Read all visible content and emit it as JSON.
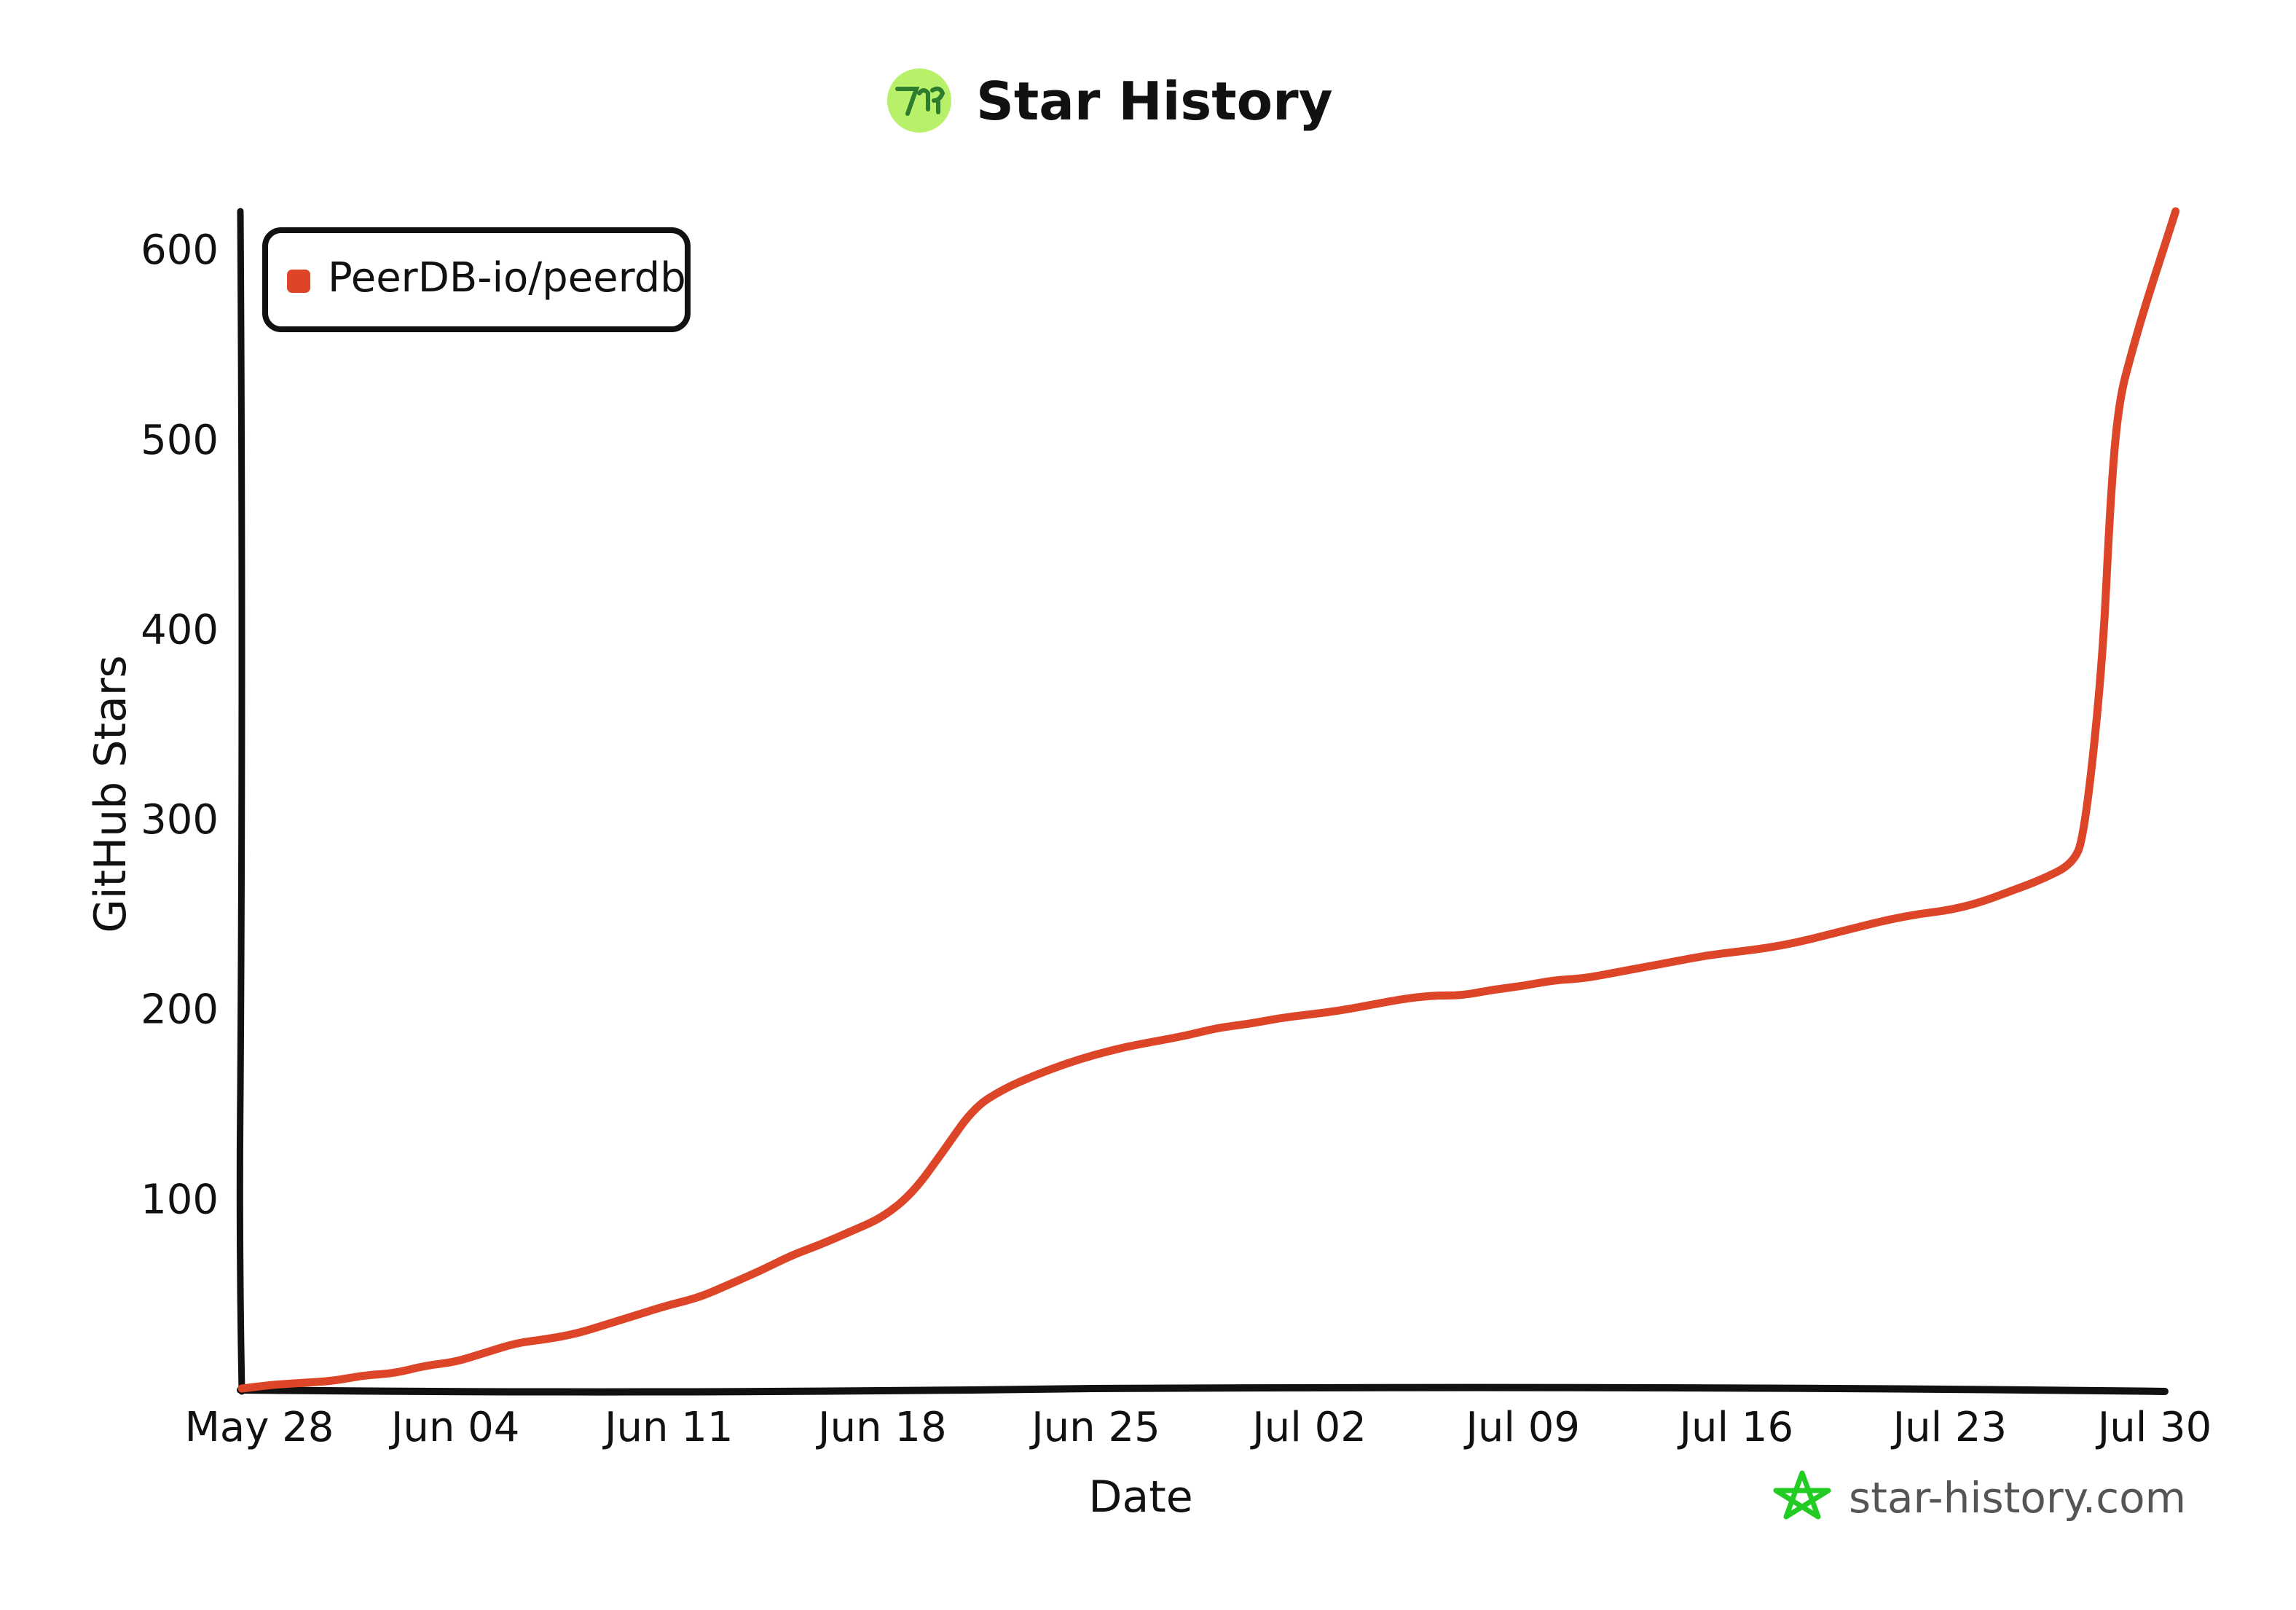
{
  "header": {
    "title": "Star History"
  },
  "watermark": {
    "text": "star-history.com"
  },
  "colors": {
    "series": "#dd4528",
    "axis": "#111111",
    "logo_bg": "#b8f06a",
    "logo_fg": "#2e7d2e",
    "watermark_star": "#22cc22"
  },
  "chart_data": {
    "type": "line",
    "title": "Star History",
    "xlabel": "Date",
    "ylabel": "GitHub Stars",
    "x_ticks": [
      "May 28",
      "Jun 04",
      "Jun 11",
      "Jun 18",
      "Jun 25",
      "Jul 02",
      "Jul 09",
      "Jul 16",
      "Jul 23",
      "Jul 30"
    ],
    "y_ticks": [
      100,
      200,
      300,
      400,
      500,
      600
    ],
    "xlim": [
      "May 28",
      "Jul 30"
    ],
    "ylim": [
      0,
      620
    ],
    "legend_position": "top-left",
    "grid": false,
    "series": [
      {
        "name": "PeerDB-io/peerdb",
        "color": "#dd4528",
        "points": [
          {
            "x": "May 28",
            "y": 0
          },
          {
            "x": "May 29",
            "y": 2
          },
          {
            "x": "May 30",
            "y": 3
          },
          {
            "x": "May 31",
            "y": 4
          },
          {
            "x": "Jun 01",
            "y": 7
          },
          {
            "x": "Jun 02",
            "y": 8
          },
          {
            "x": "Jun 03",
            "y": 12
          },
          {
            "x": "Jun 04",
            "y": 14
          },
          {
            "x": "Jun 05",
            "y": 19
          },
          {
            "x": "Jun 06",
            "y": 24
          },
          {
            "x": "Jun 07",
            "y": 26
          },
          {
            "x": "Jun 08",
            "y": 29
          },
          {
            "x": "Jun 09",
            "y": 34
          },
          {
            "x": "Jun 10",
            "y": 39
          },
          {
            "x": "Jun 11",
            "y": 44
          },
          {
            "x": "Jun 12",
            "y": 48
          },
          {
            "x": "Jun 13",
            "y": 55
          },
          {
            "x": "Jun 14",
            "y": 62
          },
          {
            "x": "Jun 15",
            "y": 70
          },
          {
            "x": "Jun 16",
            "y": 76
          },
          {
            "x": "Jun 17",
            "y": 83
          },
          {
            "x": "Jun 18",
            "y": 90
          },
          {
            "x": "Jun 19",
            "y": 103
          },
          {
            "x": "Jun 20",
            "y": 125
          },
          {
            "x": "Jun 21",
            "y": 148
          },
          {
            "x": "Jun 22",
            "y": 158
          },
          {
            "x": "Jun 23",
            "y": 165
          },
          {
            "x": "Jun 24",
            "y": 171
          },
          {
            "x": "Jun 25",
            "y": 176
          },
          {
            "x": "Jun 26",
            "y": 180
          },
          {
            "x": "Jun 27",
            "y": 183
          },
          {
            "x": "Jun 28",
            "y": 186
          },
          {
            "x": "Jun 29",
            "y": 190
          },
          {
            "x": "Jun 30",
            "y": 192
          },
          {
            "x": "Jul 01",
            "y": 195
          },
          {
            "x": "Jul 02",
            "y": 197
          },
          {
            "x": "Jul 03",
            "y": 199
          },
          {
            "x": "Jul 04",
            "y": 202
          },
          {
            "x": "Jul 05",
            "y": 205
          },
          {
            "x": "Jul 06",
            "y": 207
          },
          {
            "x": "Jul 07",
            "y": 207
          },
          {
            "x": "Jul 08",
            "y": 210
          },
          {
            "x": "Jul 09",
            "y": 212
          },
          {
            "x": "Jul 10",
            "y": 215
          },
          {
            "x": "Jul 11",
            "y": 216
          },
          {
            "x": "Jul 12",
            "y": 219
          },
          {
            "x": "Jul 13",
            "y": 222
          },
          {
            "x": "Jul 14",
            "y": 225
          },
          {
            "x": "Jul 15",
            "y": 228
          },
          {
            "x": "Jul 16",
            "y": 230
          },
          {
            "x": "Jul 17",
            "y": 232
          },
          {
            "x": "Jul 18",
            "y": 235
          },
          {
            "x": "Jul 19",
            "y": 239
          },
          {
            "x": "Jul 20",
            "y": 243
          },
          {
            "x": "Jul 21",
            "y": 247
          },
          {
            "x": "Jul 22",
            "y": 250
          },
          {
            "x": "Jul 23",
            "y": 252
          },
          {
            "x": "Jul 24",
            "y": 256
          },
          {
            "x": "Jul 25",
            "y": 262
          },
          {
            "x": "Jul 26",
            "y": 268
          },
          {
            "x": "Jul 27",
            "y": 276
          },
          {
            "x": "Jul 27",
            "y": 290
          },
          {
            "x": "Jul 28",
            "y": 380
          },
          {
            "x": "Jul 28",
            "y": 470
          },
          {
            "x": "Jul 28",
            "y": 520
          },
          {
            "x": "Jul 29",
            "y": 548
          },
          {
            "x": "Jul 29",
            "y": 570
          },
          {
            "x": "Jul 30",
            "y": 600
          },
          {
            "x": "Jul 30",
            "y": 620
          }
        ]
      }
    ]
  }
}
